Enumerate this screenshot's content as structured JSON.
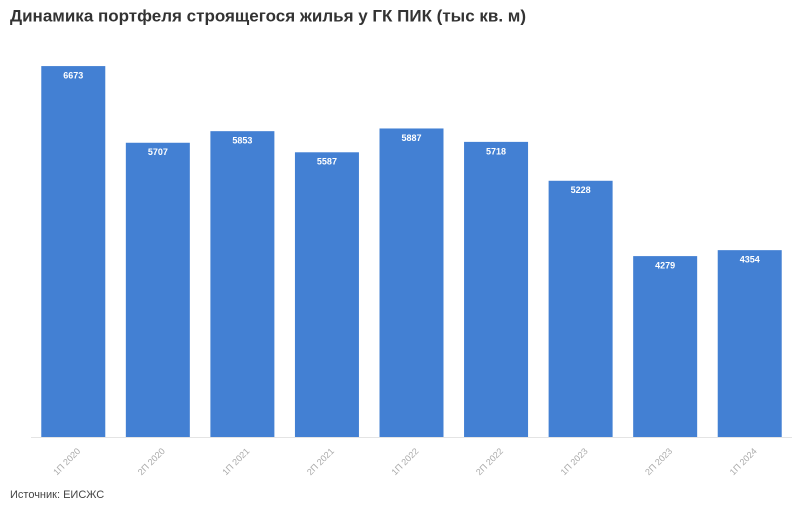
{
  "chart_data": {
    "type": "bar",
    "title": "Динамика портфеля строящегося жилья у ГК ПИК (тыс кв. м)",
    "source": "Источник: ЕИСЖС",
    "categories": [
      "1П 2020",
      "2П 2020",
      "1П 2021",
      "2П 2021",
      "1П 2022",
      "2П 2022",
      "1П 2023",
      "2П 2023",
      "1П 2024"
    ],
    "values": [
      6673,
      5707,
      5853,
      5587,
      5887,
      5718,
      5228,
      4279,
      4354
    ],
    "color": "#4380d3",
    "ylim": [
      2000,
      6800
    ]
  }
}
